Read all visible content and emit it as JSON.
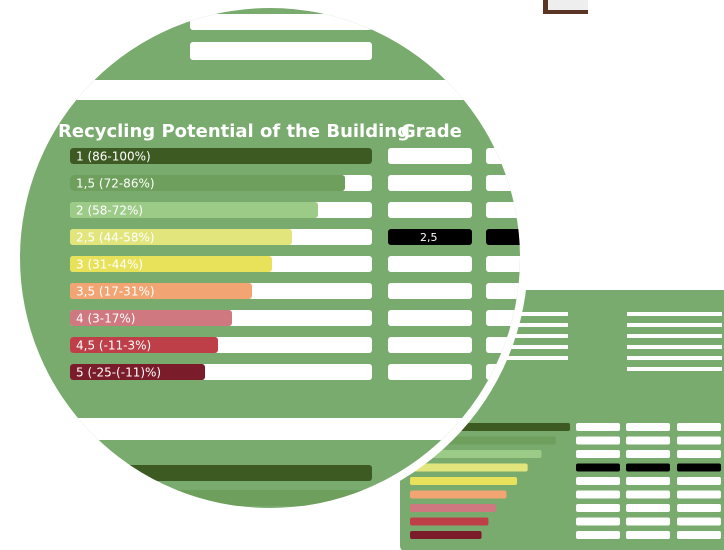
{
  "header": {
    "title": "Recycling Potential of the Building",
    "grade_heading": "Grade"
  },
  "grades": [
    {
      "label": "1 (86-100%)",
      "color": "#3d5a22"
    },
    {
      "label": "1,5 (72-86%)",
      "color": "#6f9f5c"
    },
    {
      "label": "2 (58-72%)",
      "color": "#9ccb88"
    },
    {
      "label": "2,5 (44-58%)",
      "color": "#e1e57c"
    },
    {
      "label": "3 (31-44%)",
      "color": "#e8e25a"
    },
    {
      "label": "3,5 (17-31%)",
      "color": "#f2a572"
    },
    {
      "label": "4 (3-17%)",
      "color": "#cf7880"
    },
    {
      "label": "4,5 (-11-3%)",
      "color": "#bf3f49"
    },
    {
      "label": "5 (-25-(-11)%)",
      "color": "#7a1c29"
    }
  ],
  "selected": {
    "row": 3,
    "label": "2,5"
  }
}
